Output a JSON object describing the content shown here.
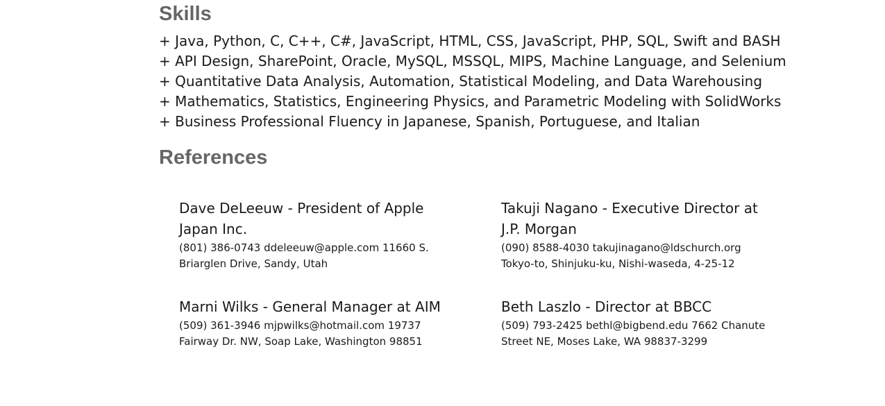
{
  "skills": {
    "heading": "Skills",
    "items": [
      "+ Java, Python, C, C++, C#, JavaScript, HTML, CSS, JavaScript, PHP, SQL, Swift and BASH",
      "+ API Design, SharePoint, Oracle, MySQL, MSSQL, MIPS, Machine Language, and Selenium",
      "+ Quantitative Data Analysis, Automation, Statistical Modeling, and Data Warehousing",
      "+ Mathematics, Statistics, Engineering Physics, and Parametric Modeling with SolidWorks",
      "+ Business Professional Fluency in Japanese, Spanish, Portuguese, and Italian"
    ]
  },
  "references": {
    "heading": "References",
    "items": [
      {
        "name": "Dave DeLeeuw - President of Apple Japan Inc.",
        "detail": "(801) 386-0743 ddeleeuw@apple.com 11660 S. Briarglen Drive, Sandy, Utah"
      },
      {
        "name": "Takuji Nagano - Executive Director at J.P. Morgan",
        "detail": "(090) 8588-4030 takujinagano@ldschurch.org Tokyo-to, Shinjuku-ku, Nishi-waseda, 4-25-12"
      },
      {
        "name": "Marni Wilks - General Manager at AIM",
        "detail": "(509) 361-3946 mjpwilks@hotmail.com 19737 Fairway Dr. NW, Soap Lake, Washington 98851"
      },
      {
        "name": "Beth Laszlo - Director at BBCC",
        "detail": "(509) 793-2425 bethl@bigbend.edu 7662 Chanute Street NE, Moses Lake, WA 98837-3299"
      }
    ]
  }
}
